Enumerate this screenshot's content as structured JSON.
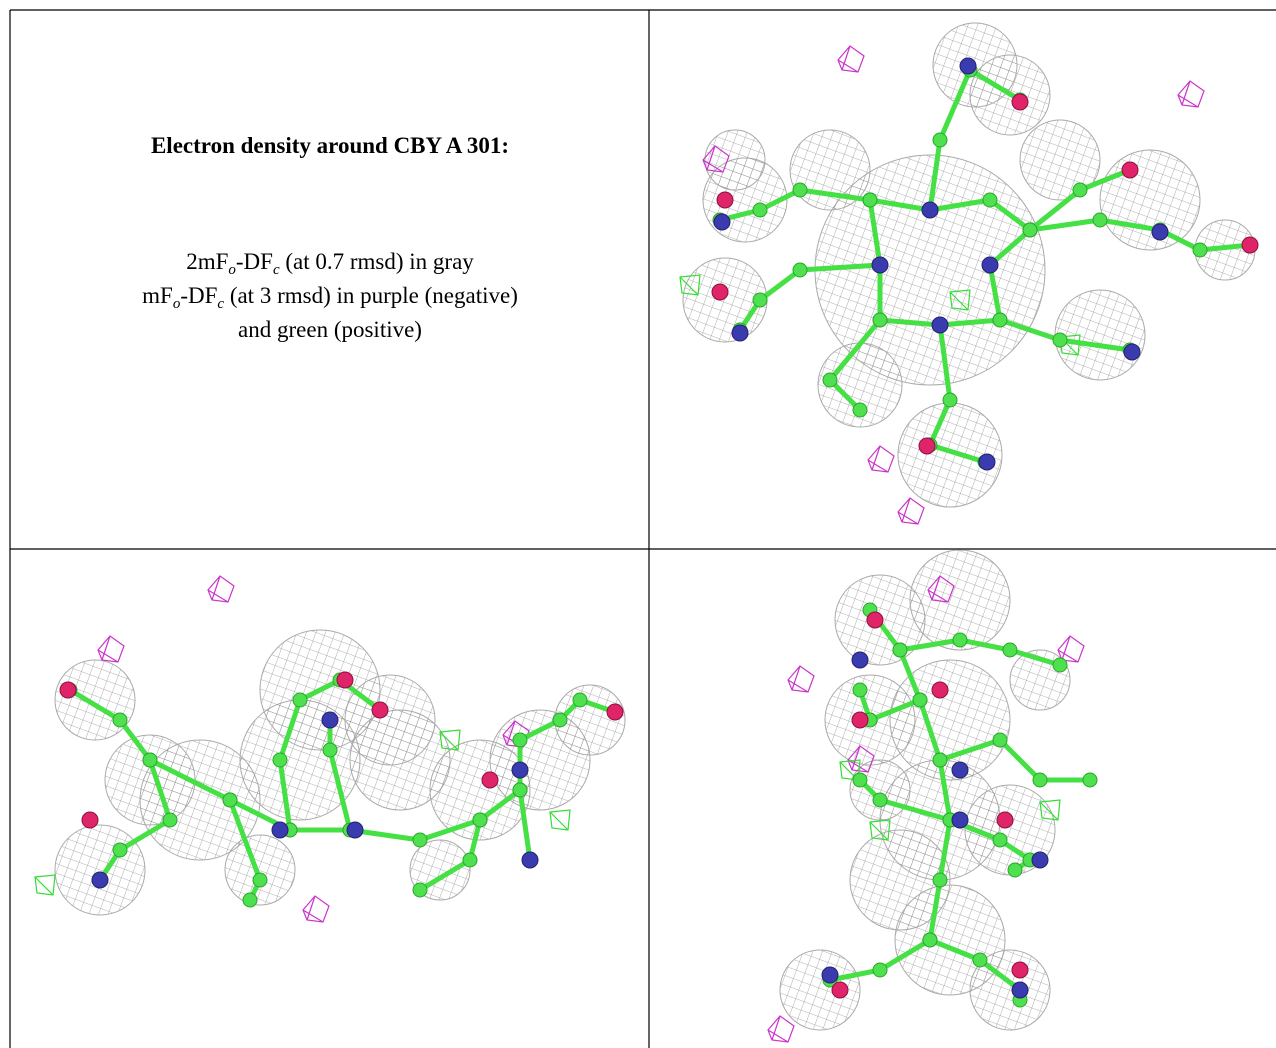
{
  "cell_text": {
    "title": "Electron density around CBY A 301:",
    "lines": [
      [
        "2mF",
        "o",
        "-DF",
        "c",
        " (at 0.7 rmsd) in gray"
      ],
      [
        "mF",
        "o",
        "-DF",
        "c",
        " (at 3 rmsd) in purple (negative)"
      ],
      [
        "and green (positive)"
      ]
    ]
  }
}
